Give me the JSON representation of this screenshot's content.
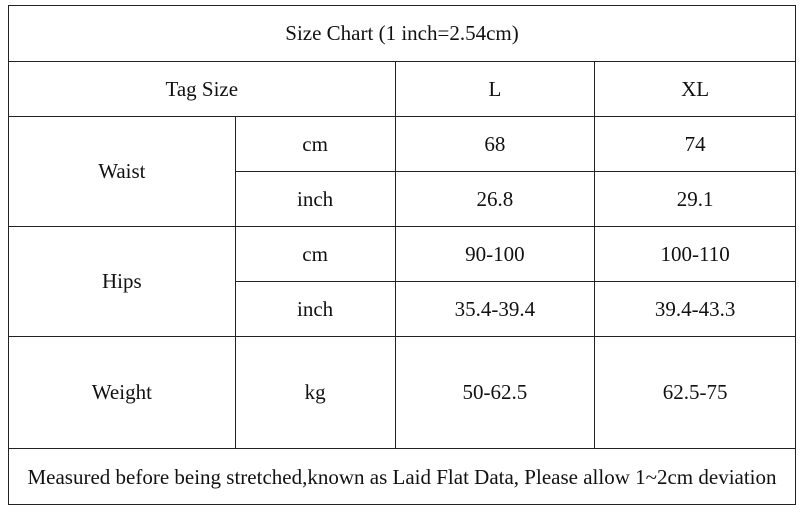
{
  "title": "Size Chart (1 inch=2.54cm)",
  "header": {
    "label": "Tag Size",
    "sizes": [
      "L",
      "XL"
    ]
  },
  "rows": [
    {
      "measure": "Waist",
      "units": [
        {
          "unit": "cm",
          "values": [
            "68",
            "74"
          ]
        },
        {
          "unit": "inch",
          "values": [
            "26.8",
            "29.1"
          ]
        }
      ]
    },
    {
      "measure": "Hips",
      "units": [
        {
          "unit": "cm",
          "values": [
            "90-100",
            "100-110"
          ]
        },
        {
          "unit": "inch",
          "values": [
            "35.4-39.4",
            "39.4-43.3"
          ]
        }
      ]
    },
    {
      "measure": "Weight",
      "units": [
        {
          "unit": "kg",
          "values": [
            "50-62.5",
            "62.5-75"
          ]
        }
      ]
    }
  ],
  "footer": "Measured before being stretched,known as Laid Flat Data, Please allow 1~2cm deviation"
}
